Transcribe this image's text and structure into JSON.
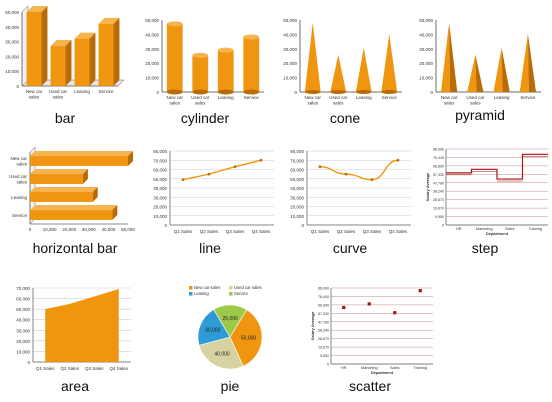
{
  "colors": {
    "bar": "#f0950f",
    "bar_dark": "#b86b06",
    "bar_top": "#f7b350",
    "axis": "#666666",
    "grid": "#cccccc",
    "step_line": "#a31515",
    "step_grid": "#c58a8a",
    "text": "#333333"
  },
  "charts": [
    {
      "caption": "bar",
      "type": "bar3d",
      "categories": [
        "New car\nsales",
        "Used car\nsales",
        "Leasing",
        "Service"
      ],
      "values": [
        50000,
        27000,
        32000,
        42000
      ],
      "yticks": [
        "0",
        "10,000",
        "20,000",
        "30,000",
        "40,000",
        "50,000"
      ],
      "ylim": [
        0,
        50000
      ]
    },
    {
      "caption": "cylinder",
      "type": "cylinder",
      "categories": [
        "New car\nsales",
        "Used car\nsales",
        "Leasing",
        "Service"
      ],
      "values": [
        52000,
        28000,
        32000,
        42000
      ],
      "yticks": [
        "0",
        "10,000",
        "20,000",
        "30,000",
        "40,000",
        "50,000"
      ],
      "ylim": [
        0,
        55000
      ]
    },
    {
      "caption": "cone",
      "type": "cone",
      "categories": [
        "New car\nsales",
        "Used car\nsales",
        "Leasing",
        "Service"
      ],
      "values": [
        50000,
        27000,
        32000,
        42000
      ],
      "yticks": [
        "0",
        "10,000",
        "20,000",
        "30,000",
        "40,000",
        "50,000"
      ],
      "ylim": [
        0,
        52000
      ]
    },
    {
      "caption": "pyramid",
      "type": "pyramid",
      "categories": [
        "New car\nsales",
        "Used car\nsales",
        "Leasing",
        "Service"
      ],
      "values": [
        50000,
        27000,
        32000,
        42000
      ],
      "yticks": [
        "0",
        "10,000",
        "20,000",
        "30,000",
        "40,000",
        "50,000"
      ],
      "ylim": [
        0,
        52000
      ]
    },
    {
      "caption": "horizontal bar",
      "type": "hbar",
      "categories": [
        "New car\nsales",
        "Used car\nsales",
        "Leasing",
        "Service"
      ],
      "values": [
        50000,
        27000,
        32000,
        42000
      ],
      "xticks": [
        "0",
        "10,000",
        "20,000",
        "30,000",
        "40,000",
        "50,000"
      ],
      "xlim": [
        0,
        50000
      ]
    },
    {
      "caption": "line",
      "type": "line",
      "categories": [
        "Q1 Sales",
        "Q2 Sales",
        "Q3 Sales",
        "Q4 Sales"
      ],
      "values": [
        49000,
        55000,
        63000,
        70000
      ],
      "yticks": [
        "0",
        "10,000",
        "20,000",
        "30,000",
        "40,000",
        "50,000",
        "60,000",
        "70,000",
        "80,000"
      ],
      "ylim": [
        0,
        80000
      ]
    },
    {
      "caption": "curve",
      "type": "curve",
      "categories": [
        "Q1 Sales",
        "Q2 Sales",
        "Q3 Sales",
        "Q4 Sales"
      ],
      "values": [
        63000,
        55000,
        49000,
        70000
      ],
      "yticks": [
        "0",
        "10,000",
        "20,000",
        "30,000",
        "40,000",
        "50,000",
        "60,000",
        "70,000",
        "80,000"
      ],
      "ylim": [
        0,
        80000
      ]
    },
    {
      "caption": "step",
      "type": "step",
      "categories": [
        "HR",
        "Marketing",
        "Sales",
        "Training"
      ],
      "values": [
        59000,
        63000,
        52000,
        80000
      ],
      "yticks": [
        "0",
        "9,950",
        "19,670",
        "28,670",
        "38,240",
        "47,780",
        "57,330",
        "66,890",
        "76,440",
        "86,000"
      ],
      "ylim": [
        0,
        86000
      ],
      "ylabel": "Salary Average",
      "xlabel": "Department"
    },
    {
      "caption": "area",
      "type": "area",
      "categories": [
        "Q1 Sales",
        "Q2 Sales",
        "Q3 Sales",
        "Q4 Sales"
      ],
      "values": [
        50000,
        55000,
        62000,
        69000
      ],
      "yticks": [
        "0",
        "10,000",
        "20,000",
        "30,000",
        "40,000",
        "50,000",
        "60,000",
        "70,000"
      ],
      "ylim": [
        0,
        70000
      ]
    },
    {
      "caption": "pie",
      "type": "pie",
      "legend": [
        "New car sales",
        "Used car sales",
        "Leasing",
        "Service"
      ],
      "values": [
        50000,
        40000,
        30000,
        25000
      ],
      "labels": [
        "50,000",
        "40,000",
        "30,000",
        "25,000"
      ],
      "slice_colors": [
        "#f0950f",
        "#d7d2a1",
        "#2f9bd6",
        "#9cc94a"
      ]
    },
    {
      "caption": "scatter",
      "type": "scatter",
      "categories": [
        "HR",
        "Marketing",
        "Sales",
        "Training"
      ],
      "values": [
        64000,
        68000,
        58000,
        83000
      ],
      "yticks": [
        "0",
        "9,550",
        "19,670",
        "28,670",
        "38,240",
        "47,780",
        "57,330",
        "66,890",
        "76,440",
        "86,000"
      ],
      "ylim": [
        0,
        86000
      ],
      "ylabel": "Salary Average",
      "xlabel": "Department"
    }
  ]
}
